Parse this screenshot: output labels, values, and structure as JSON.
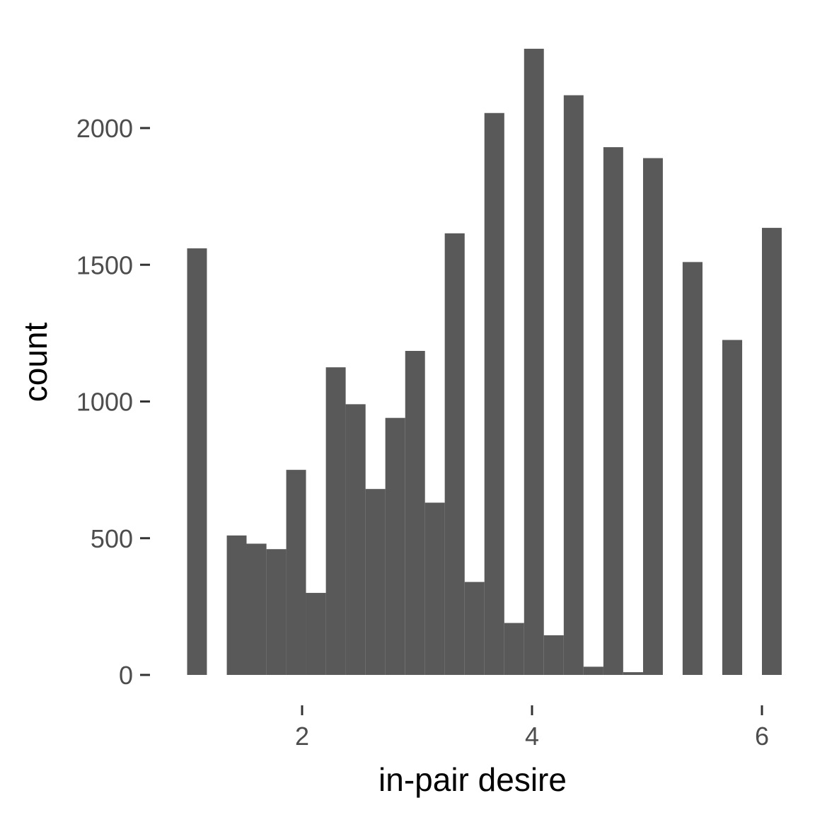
{
  "chart_data": {
    "type": "bar",
    "xlabel": "in-pair desire",
    "ylabel": "count",
    "xlim": [
      1.0,
      6.0
    ],
    "ylim": [
      0,
      2300
    ],
    "x_ticks": [
      2,
      4,
      6
    ],
    "y_ticks": [
      0,
      500,
      1000,
      1500,
      2000
    ],
    "grid": false,
    "legend": "none",
    "bar_color": "#595959",
    "bins": [
      {
        "x0": 1.0,
        "x1": 1.172,
        "value": 1560
      },
      {
        "x0": 1.172,
        "x1": 1.345,
        "value": 0
      },
      {
        "x0": 1.345,
        "x1": 1.517,
        "value": 510
      },
      {
        "x0": 1.517,
        "x1": 1.69,
        "value": 480
      },
      {
        "x0": 1.69,
        "x1": 1.862,
        "value": 460
      },
      {
        "x0": 1.862,
        "x1": 2.034,
        "value": 750
      },
      {
        "x0": 2.034,
        "x1": 2.207,
        "value": 300
      },
      {
        "x0": 2.207,
        "x1": 2.379,
        "value": 1125
      },
      {
        "x0": 2.379,
        "x1": 2.552,
        "value": 990
      },
      {
        "x0": 2.552,
        "x1": 2.724,
        "value": 680
      },
      {
        "x0": 2.724,
        "x1": 2.897,
        "value": 940
      },
      {
        "x0": 2.897,
        "x1": 3.069,
        "value": 1185
      },
      {
        "x0": 3.069,
        "x1": 3.241,
        "value": 630
      },
      {
        "x0": 3.241,
        "x1": 3.414,
        "value": 1615
      },
      {
        "x0": 3.414,
        "x1": 3.586,
        "value": 340
      },
      {
        "x0": 3.586,
        "x1": 3.759,
        "value": 2055
      },
      {
        "x0": 3.759,
        "x1": 3.931,
        "value": 190
      },
      {
        "x0": 3.931,
        "x1": 4.103,
        "value": 2290
      },
      {
        "x0": 4.103,
        "x1": 4.276,
        "value": 145
      },
      {
        "x0": 4.276,
        "x1": 4.448,
        "value": 2120
      },
      {
        "x0": 4.448,
        "x1": 4.621,
        "value": 30
      },
      {
        "x0": 4.621,
        "x1": 4.793,
        "value": 1930
      },
      {
        "x0": 4.793,
        "x1": 4.966,
        "value": 10
      },
      {
        "x0": 4.966,
        "x1": 5.138,
        "value": 1890
      },
      {
        "x0": 5.138,
        "x1": 5.31,
        "value": 0
      },
      {
        "x0": 5.31,
        "x1": 5.483,
        "value": 1510
      },
      {
        "x0": 5.483,
        "x1": 5.655,
        "value": 0
      },
      {
        "x0": 5.655,
        "x1": 5.828,
        "value": 1225
      },
      {
        "x0": 5.828,
        "x1": 6.0,
        "value": 0
      },
      {
        "x0": 6.0,
        "x1": 6.172,
        "value": 1635
      }
    ]
  }
}
